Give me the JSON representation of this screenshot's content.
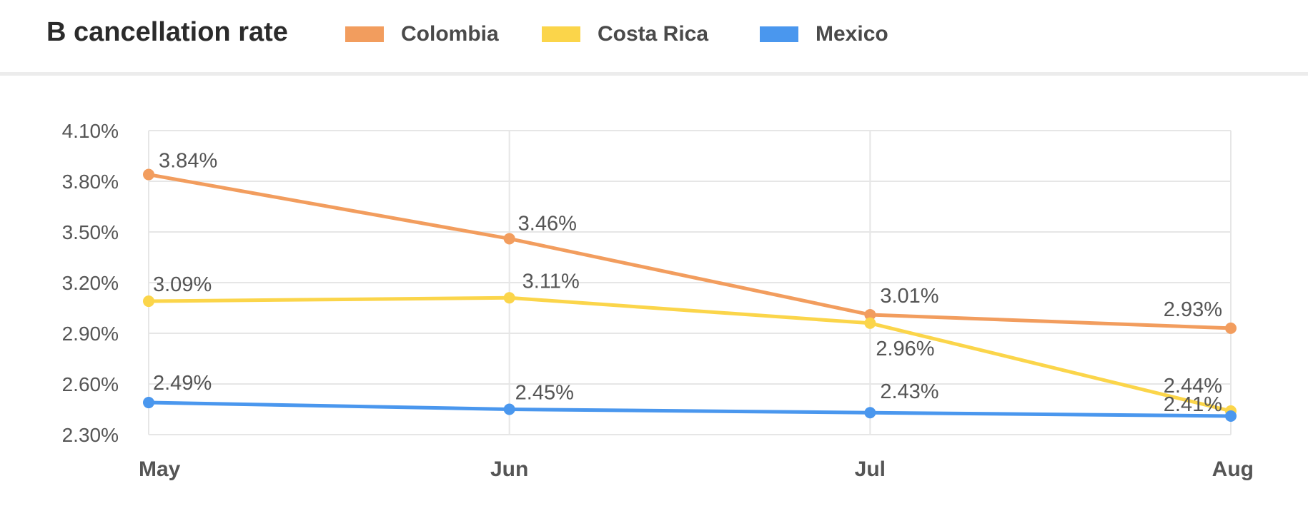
{
  "chart_data": {
    "type": "line",
    "title": "B cancellation rate",
    "categories": [
      "May",
      "Jun",
      "Jul",
      "Aug"
    ],
    "series": [
      {
        "name": "Colombia",
        "color": "#F29D5E",
        "values": [
          3.84,
          3.46,
          3.01,
          2.93
        ],
        "labels": [
          "3.84%",
          "3.46%",
          "3.01%",
          "2.93%"
        ]
      },
      {
        "name": "Costa Rica",
        "color": "#FBD54A",
        "values": [
          3.09,
          3.11,
          2.96,
          2.44
        ],
        "labels": [
          "3.09%",
          "3.11%",
          "2.96%",
          "2.44%"
        ]
      },
      {
        "name": "Mexico",
        "color": "#4A97EE",
        "values": [
          2.49,
          2.45,
          2.43,
          2.41
        ],
        "labels": [
          "2.49%",
          "2.45%",
          "2.43%",
          "2.41%"
        ]
      }
    ],
    "y_ticks": [
      "4.10%",
      "3.80%",
      "3.50%",
      "3.20%",
      "2.90%",
      "2.60%",
      "2.30%"
    ],
    "ylim": [
      2.3,
      4.1
    ],
    "y_unit": "%",
    "grid": true,
    "legend_position": "top"
  }
}
